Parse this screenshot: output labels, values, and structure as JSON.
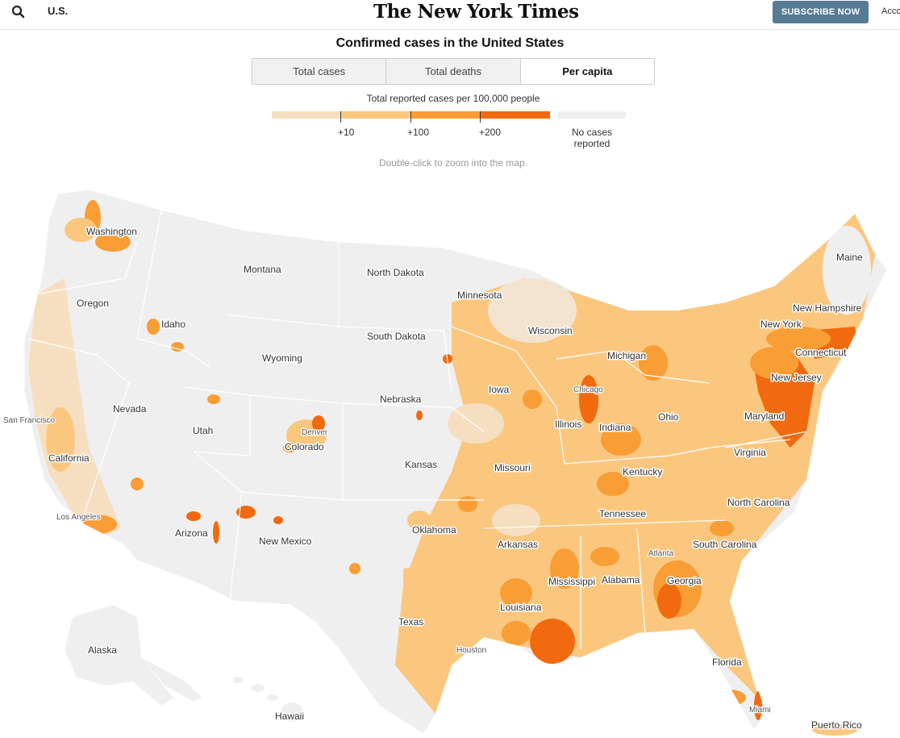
{
  "header": {
    "section_label": "U.S.",
    "masthead": "The New York Times",
    "subscribe_label": "SUBSCRIBE NOW",
    "account_label": "Acco"
  },
  "title": "Confirmed cases in the United States",
  "tabs": [
    {
      "label": "Total cases",
      "active": false
    },
    {
      "label": "Total deaths",
      "active": false
    },
    {
      "label": "Per capita",
      "active": true
    }
  ],
  "legend": {
    "title": "Total reported cases per 100,000 people",
    "ticks": [
      "+10",
      "+100",
      "+200"
    ],
    "no_cases_label": "No cases reported",
    "colors": {
      "bin_0_10": "#f6dfc0",
      "bin_10_100": "#fbc77f",
      "bin_100_200": "#f99d35",
      "bin_200_plus": "#f26a0f",
      "no_cases": "#efefef"
    }
  },
  "hint": "Double-click to zoom into the map.",
  "map": {
    "states": [
      "Washington",
      "Oregon",
      "California",
      "Nevada",
      "Idaho",
      "Montana",
      "Wyoming",
      "Utah",
      "Arizona",
      "Colorado",
      "New Mexico",
      "North Dakota",
      "South Dakota",
      "Nebraska",
      "Kansas",
      "Oklahoma",
      "Texas",
      "Minnesota",
      "Iowa",
      "Missouri",
      "Arkansas",
      "Louisiana",
      "Wisconsin",
      "Illinois",
      "Michigan",
      "Indiana",
      "Ohio",
      "Kentucky",
      "Tennessee",
      "Mississippi",
      "Alabama",
      "Georgia",
      "Florida",
      "South Carolina",
      "North Carolina",
      "Virginia",
      "Maryland",
      "New Jersey",
      "Connecticut",
      "New York",
      "New Hampshire",
      "Maine",
      "Alaska",
      "Hawaii",
      "Puerto Rico"
    ],
    "cities": [
      "San Francisco",
      "Los Angeles",
      "Denver",
      "Chicago",
      "Atlanta",
      "Houston",
      "Miami"
    ]
  }
}
